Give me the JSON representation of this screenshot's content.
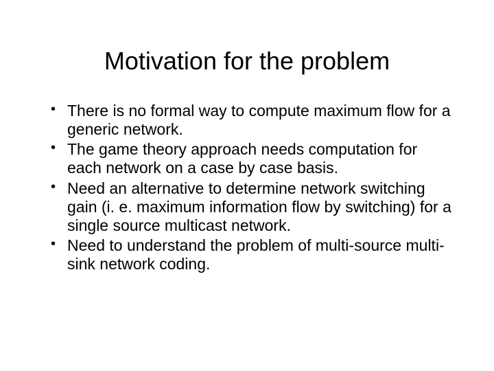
{
  "slide": {
    "title": "Motivation for the problem",
    "title_fontsize": 36,
    "body_fontsize": 23,
    "background_color": "#ffffff",
    "text_color": "#000000",
    "font_family": "Arial",
    "bullets": [
      "There is no formal way to compute maximum flow for a generic network.",
      "The game theory approach needs computation for each network on a case by case basis.",
      "Need an alternative to determine network switching gain (i. e. maximum information flow by switching) for a single source multicast network.",
      "Need to understand the problem of multi-source multi-sink network coding."
    ]
  }
}
